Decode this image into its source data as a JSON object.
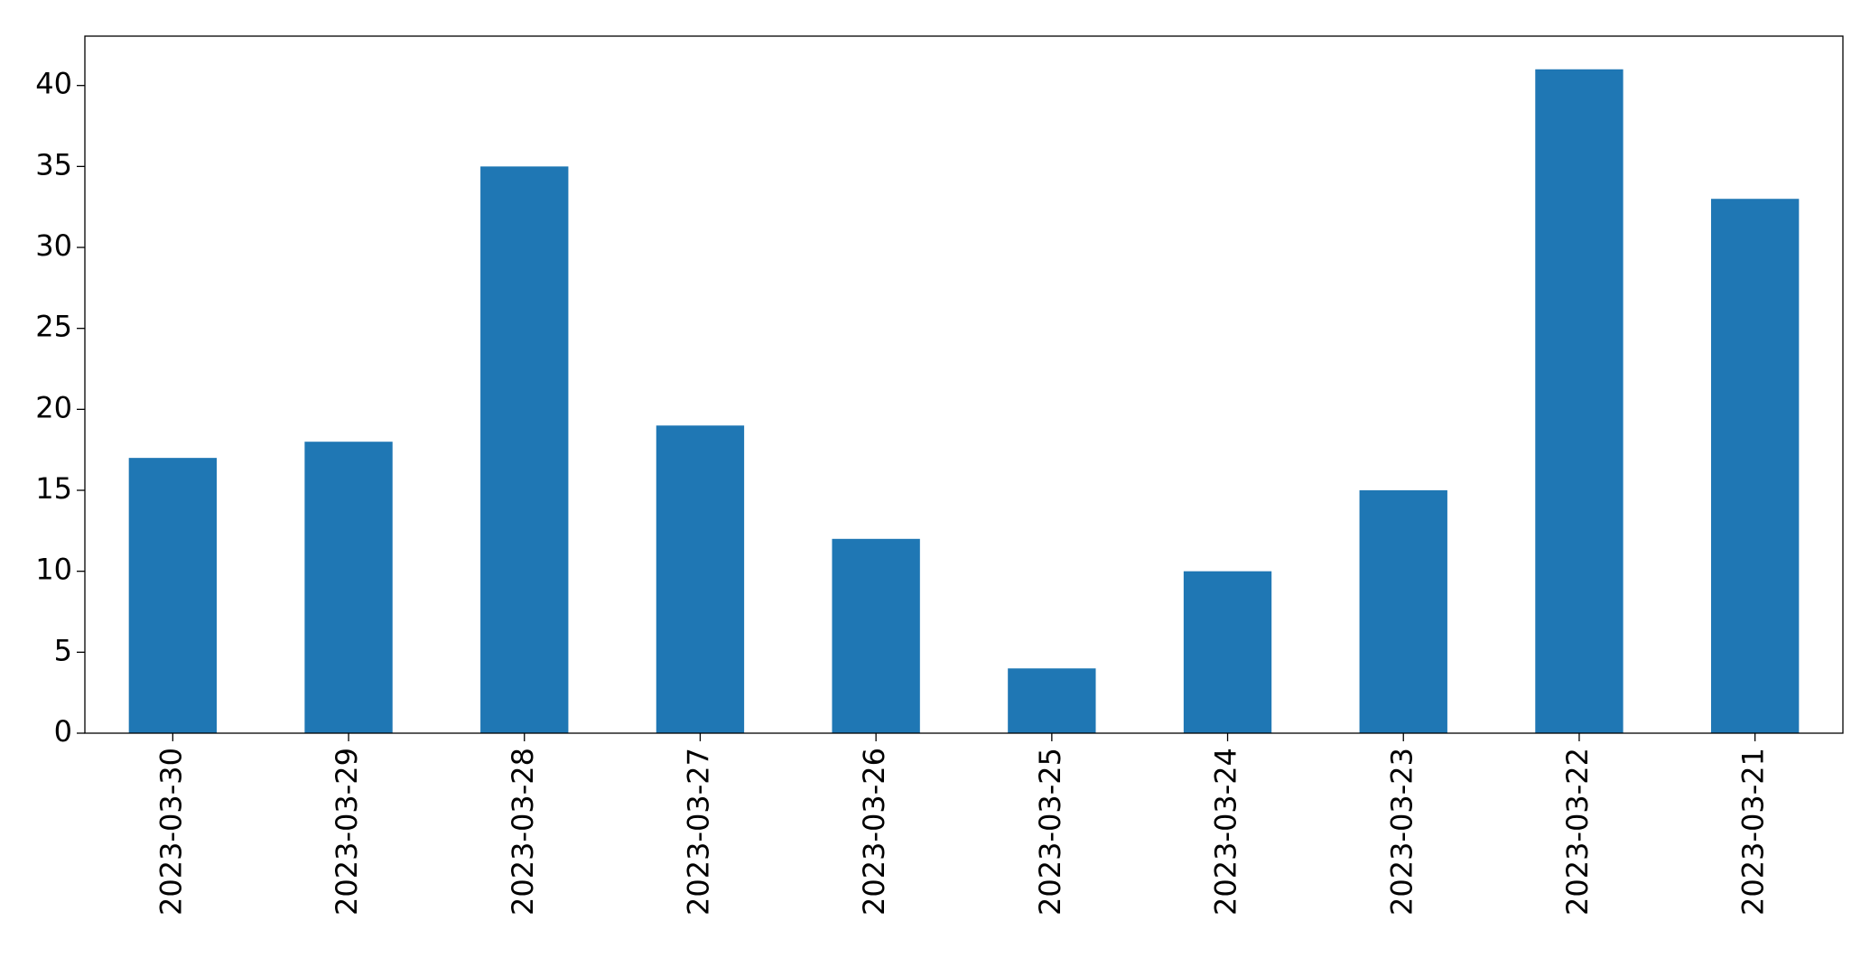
{
  "chart_data": {
    "type": "bar",
    "categories": [
      "2023-03-30",
      "2023-03-29",
      "2023-03-28",
      "2023-03-27",
      "2023-03-26",
      "2023-03-25",
      "2023-03-24",
      "2023-03-23",
      "2023-03-22",
      "2023-03-21"
    ],
    "values": [
      17,
      18,
      35,
      19,
      12,
      4,
      10,
      15,
      41,
      33
    ],
    "color": "#1f77b4",
    "ylim": [
      0,
      43.05
    ],
    "yticks": [
      0,
      5,
      10,
      15,
      20,
      25,
      30,
      35,
      40
    ],
    "grid": false
  }
}
